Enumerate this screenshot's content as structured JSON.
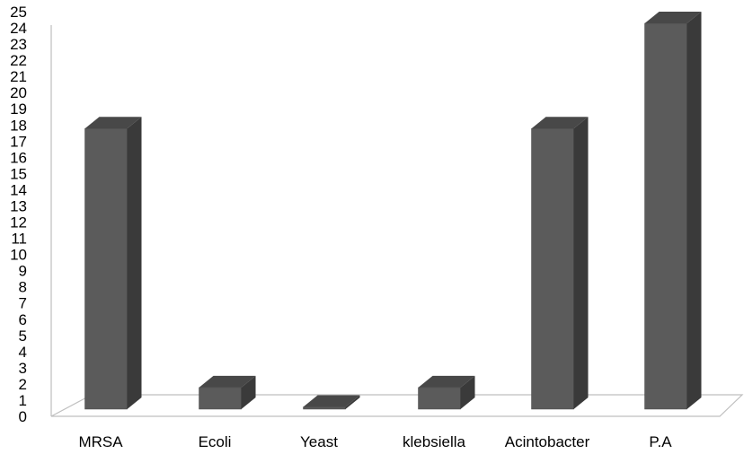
{
  "chart_data": {
    "type": "bar",
    "style": "3d-column",
    "categories": [
      "MRSA",
      "Ecoli",
      "Yeast",
      "klebsiella",
      "Acintobacter",
      "P.A"
    ],
    "values": [
      18.5,
      2.5,
      1.3,
      2.5,
      18.5,
      25
    ],
    "title": "",
    "xlabel": "",
    "ylabel": "",
    "ylim": [
      0,
      25
    ],
    "yticks": [
      0,
      1,
      2,
      3,
      4,
      5,
      6,
      7,
      8,
      9,
      10,
      11,
      12,
      13,
      14,
      15,
      16,
      17,
      18,
      19,
      20,
      21,
      22,
      23,
      24,
      25
    ],
    "grid": false,
    "legend": "none",
    "colors": {
      "bar_front": "#5b5b5b",
      "bar_side": "#3a3a3a",
      "bar_top": "#484848",
      "floor_stroke": "#bfbfbf",
      "axis_stroke": "#bfbfbf"
    }
  }
}
